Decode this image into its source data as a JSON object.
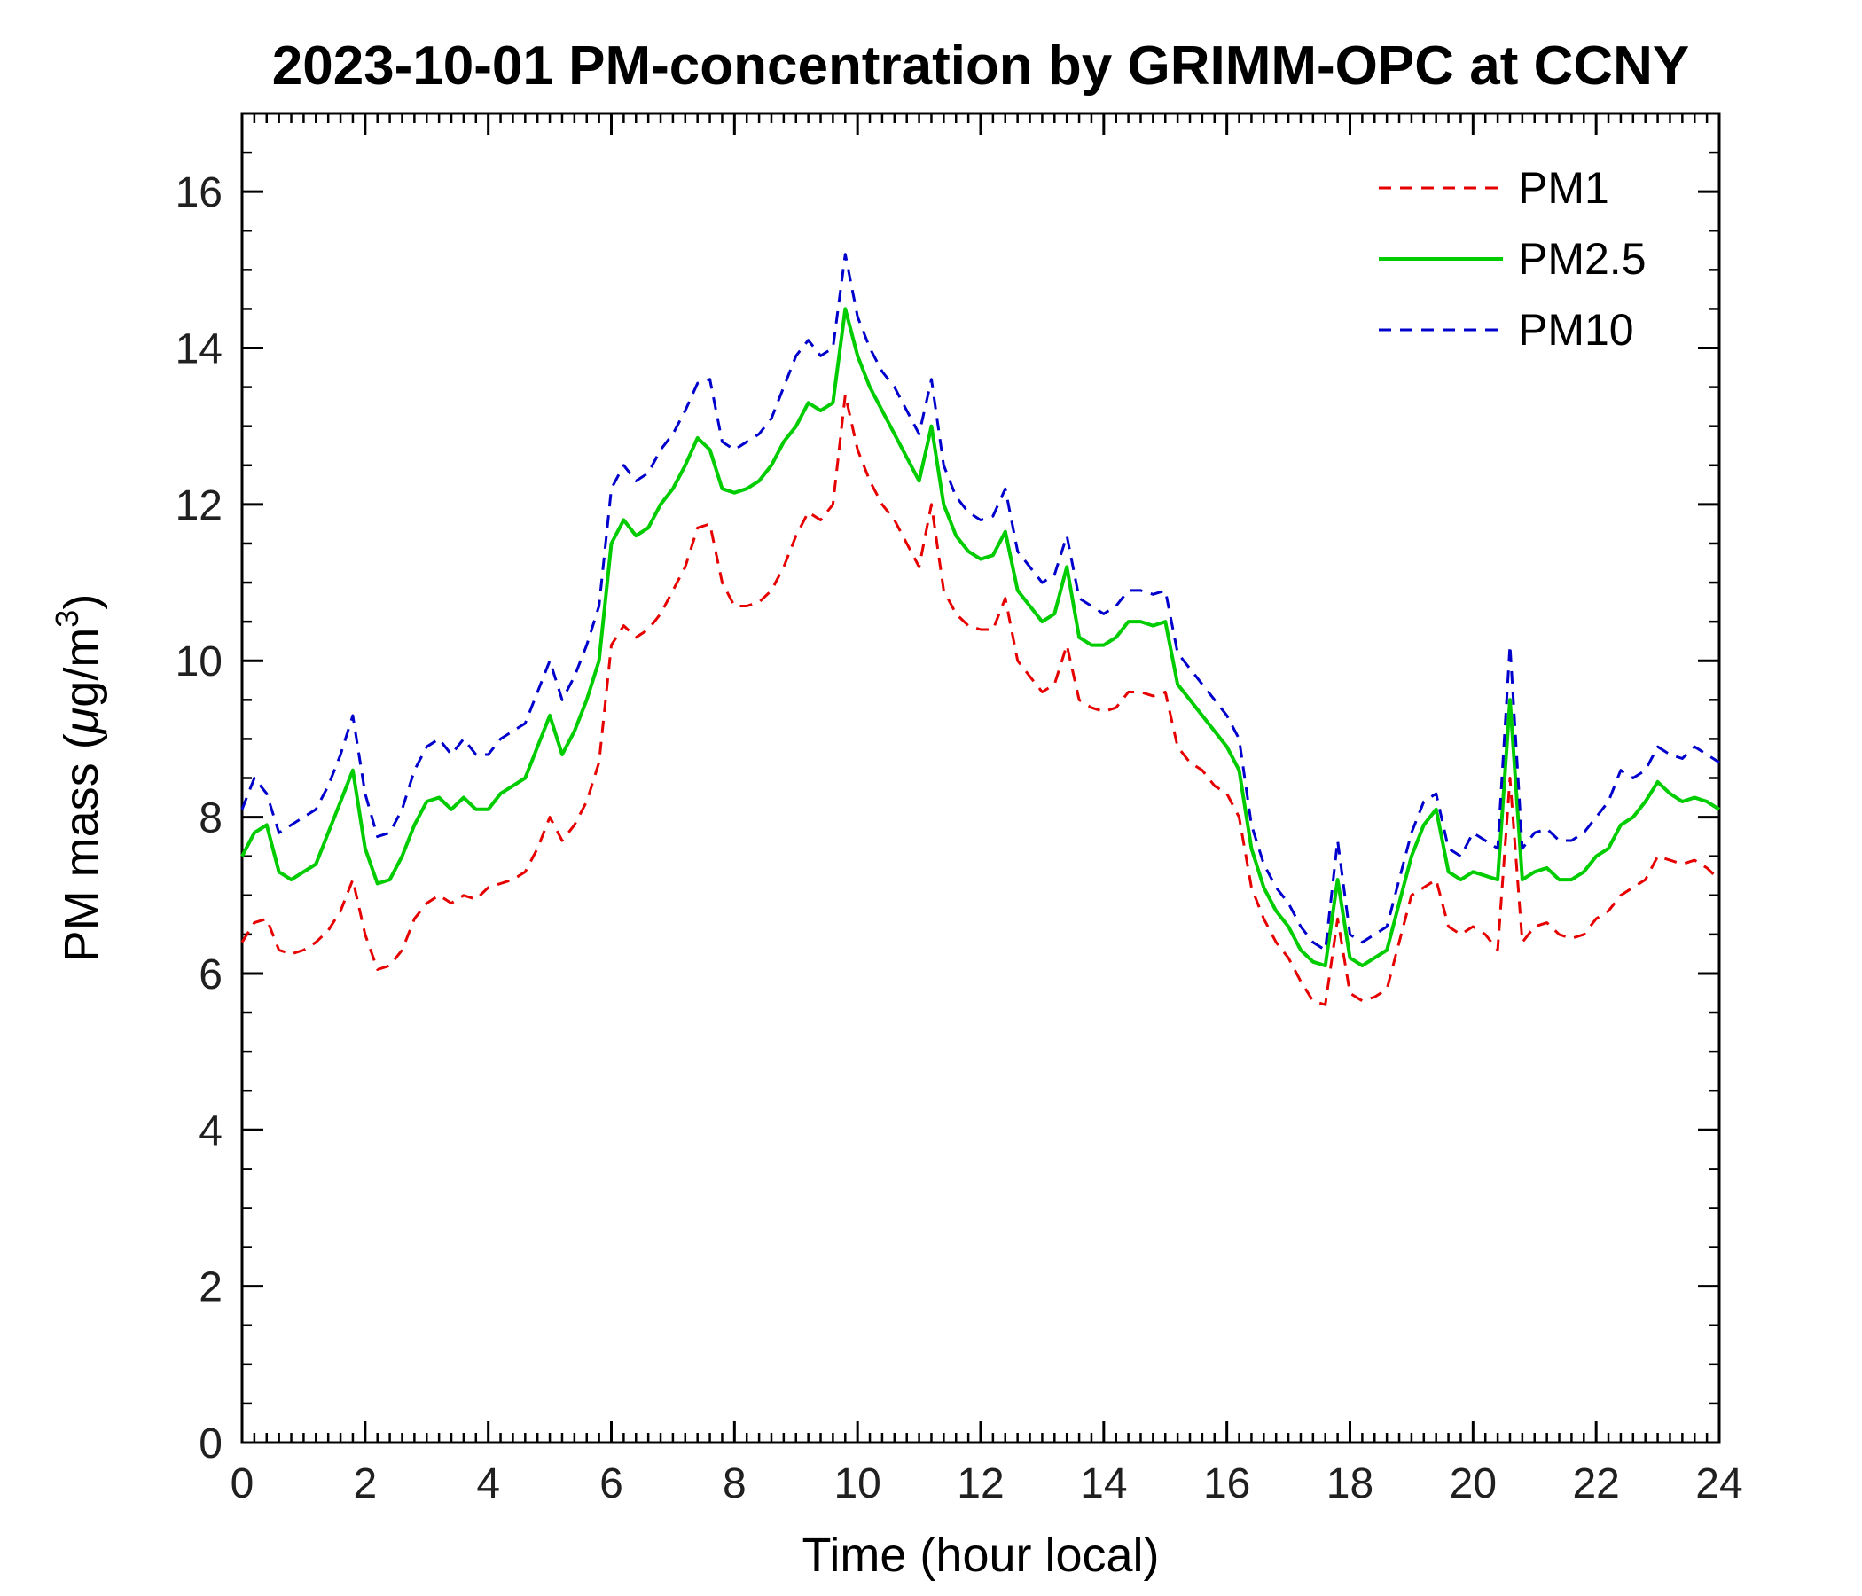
{
  "figure": {
    "background": "#ffffff",
    "axes_color": "#000000"
  },
  "chart_data": {
    "type": "line",
    "title": "2023-10-01 PM-concentration by GRIMM-OPC at CCNY",
    "xlabel": "Time (hour local)",
    "ylabel": "PM mass (μg/m³)",
    "ylabel_parts": [
      {
        "t": "PM mass ("
      },
      {
        "t": "μ",
        "i": true
      },
      {
        "t": "g/m"
      },
      {
        "t": "3",
        "sup": true
      },
      {
        "t": ")"
      }
    ],
    "xlim": [
      0,
      24
    ],
    "ylim": [
      0,
      17
    ],
    "xticks": [
      0,
      2,
      4,
      6,
      8,
      10,
      12,
      14,
      16,
      18,
      20,
      22,
      24
    ],
    "yticks": [
      0,
      2,
      4,
      6,
      8,
      10,
      12,
      14,
      16
    ],
    "x_minor_step": 0.2,
    "y_minor_step": 0.5,
    "grid": false,
    "legend_position": "top-right",
    "legend_box": false,
    "x": [
      0,
      0.2,
      0.4,
      0.6,
      0.8,
      1,
      1.2,
      1.4,
      1.6,
      1.8,
      2,
      2.2,
      2.4,
      2.6,
      2.8,
      3,
      3.2,
      3.4,
      3.6,
      3.8,
      4,
      4.2,
      4.4,
      4.6,
      4.8,
      5,
      5.2,
      5.4,
      5.6,
      5.8,
      6,
      6.2,
      6.4,
      6.6,
      6.8,
      7,
      7.2,
      7.4,
      7.6,
      7.8,
      8,
      8.2,
      8.4,
      8.6,
      8.8,
      9,
      9.2,
      9.4,
      9.6,
      9.8,
      10,
      10.2,
      10.4,
      10.6,
      10.8,
      11,
      11.2,
      11.4,
      11.6,
      11.8,
      12,
      12.2,
      12.4,
      12.6,
      12.8,
      13,
      13.2,
      13.4,
      13.6,
      13.8,
      14,
      14.2,
      14.4,
      14.6,
      14.8,
      15,
      15.2,
      15.4,
      15.6,
      15.8,
      16,
      16.2,
      16.4,
      16.6,
      16.8,
      17,
      17.2,
      17.4,
      17.6,
      17.8,
      18,
      18.2,
      18.4,
      18.6,
      18.8,
      19,
      19.2,
      19.4,
      19.6,
      19.8,
      20,
      20.2,
      20.4,
      20.6,
      20.8,
      21,
      21.2,
      21.4,
      21.6,
      21.8,
      22,
      22.2,
      22.4,
      22.6,
      22.8,
      23,
      23.2,
      23.4,
      23.6,
      23.8,
      24
    ],
    "series": [
      {
        "name": "PM1",
        "color": "#e60000",
        "dash": "dashed",
        "width": 3,
        "values": [
          6.4,
          6.65,
          6.7,
          6.3,
          6.25,
          6.3,
          6.4,
          6.55,
          6.8,
          7.2,
          6.5,
          6.05,
          6.1,
          6.3,
          6.7,
          6.9,
          7.0,
          6.9,
          7.0,
          6.95,
          7.1,
          7.15,
          7.2,
          7.3,
          7.6,
          8.0,
          7.7,
          7.9,
          8.2,
          8.7,
          10.2,
          10.45,
          10.3,
          10.4,
          10.6,
          10.9,
          11.2,
          11.7,
          11.75,
          11.0,
          10.7,
          10.7,
          10.75,
          10.9,
          11.2,
          11.6,
          11.9,
          11.8,
          12.0,
          13.4,
          12.7,
          12.3,
          12.0,
          11.8,
          11.5,
          11.2,
          12.0,
          10.9,
          10.6,
          10.45,
          10.4,
          10.4,
          10.8,
          10.0,
          9.8,
          9.6,
          9.7,
          10.2,
          9.5,
          9.4,
          9.35,
          9.4,
          9.6,
          9.6,
          9.55,
          9.6,
          8.9,
          8.7,
          8.6,
          8.4,
          8.3,
          8.0,
          7.1,
          6.7,
          6.4,
          6.2,
          5.9,
          5.65,
          5.6,
          6.7,
          5.75,
          5.65,
          5.7,
          5.8,
          6.4,
          7.0,
          7.1,
          7.2,
          6.6,
          6.5,
          6.6,
          6.5,
          6.3,
          8.5,
          6.4,
          6.6,
          6.65,
          6.5,
          6.45,
          6.5,
          6.7,
          6.8,
          7.0,
          7.1,
          7.2,
          7.5,
          7.45,
          7.4,
          7.45,
          7.35,
          7.2
        ]
      },
      {
        "name": "PM2.5",
        "color": "#00cc00",
        "dash": "solid",
        "width": 4,
        "values": [
          7.5,
          7.8,
          7.9,
          7.3,
          7.2,
          7.3,
          7.4,
          7.8,
          8.2,
          8.6,
          7.6,
          7.15,
          7.2,
          7.5,
          7.9,
          8.2,
          8.25,
          8.1,
          8.25,
          8.1,
          8.1,
          8.3,
          8.4,
          8.5,
          8.9,
          9.3,
          8.8,
          9.1,
          9.5,
          10.0,
          11.5,
          11.8,
          11.6,
          11.7,
          12.0,
          12.2,
          12.5,
          12.85,
          12.7,
          12.2,
          12.15,
          12.2,
          12.3,
          12.5,
          12.8,
          13.0,
          13.3,
          13.2,
          13.3,
          14.5,
          13.9,
          13.5,
          13.2,
          12.9,
          12.6,
          12.3,
          13.0,
          12.0,
          11.6,
          11.4,
          11.3,
          11.35,
          11.65,
          10.9,
          10.7,
          10.5,
          10.6,
          11.2,
          10.3,
          10.2,
          10.2,
          10.3,
          10.5,
          10.5,
          10.45,
          10.5,
          9.7,
          9.5,
          9.3,
          9.1,
          8.9,
          8.6,
          7.6,
          7.1,
          6.8,
          6.6,
          6.3,
          6.15,
          6.1,
          7.2,
          6.2,
          6.1,
          6.2,
          6.3,
          6.9,
          7.5,
          7.9,
          8.1,
          7.3,
          7.2,
          7.3,
          7.25,
          7.2,
          9.5,
          7.2,
          7.3,
          7.35,
          7.2,
          7.2,
          7.3,
          7.5,
          7.6,
          7.9,
          8.0,
          8.2,
          8.45,
          8.3,
          8.2,
          8.25,
          8.2,
          8.1
        ]
      },
      {
        "name": "PM10",
        "color": "#0000cc",
        "dash": "dashed",
        "width": 3,
        "values": [
          8.1,
          8.5,
          8.3,
          7.8,
          7.9,
          8.0,
          8.1,
          8.4,
          8.8,
          9.3,
          8.3,
          7.75,
          7.8,
          8.1,
          8.6,
          8.9,
          9.0,
          8.8,
          9.0,
          8.8,
          8.8,
          9.0,
          9.1,
          9.2,
          9.6,
          10.0,
          9.5,
          9.8,
          10.2,
          10.7,
          12.2,
          12.5,
          12.3,
          12.4,
          12.7,
          12.9,
          13.2,
          13.55,
          13.6,
          12.8,
          12.7,
          12.8,
          12.9,
          13.1,
          13.5,
          13.9,
          14.1,
          13.9,
          14.0,
          15.2,
          14.4,
          14.0,
          13.7,
          13.5,
          13.2,
          12.9,
          13.6,
          12.5,
          12.1,
          11.9,
          11.8,
          11.85,
          12.2,
          11.4,
          11.2,
          11.0,
          11.1,
          11.6,
          10.8,
          10.7,
          10.6,
          10.7,
          10.9,
          10.9,
          10.85,
          10.9,
          10.1,
          9.9,
          9.7,
          9.5,
          9.3,
          9.0,
          7.9,
          7.4,
          7.1,
          6.9,
          6.6,
          6.4,
          6.3,
          7.7,
          6.5,
          6.4,
          6.5,
          6.6,
          7.2,
          7.8,
          8.2,
          8.3,
          7.6,
          7.5,
          7.8,
          7.7,
          7.6,
          10.2,
          7.6,
          7.8,
          7.85,
          7.7,
          7.7,
          7.8,
          8.0,
          8.2,
          8.6,
          8.5,
          8.6,
          8.9,
          8.8,
          8.75,
          8.9,
          8.8,
          8.7
        ]
      }
    ]
  }
}
